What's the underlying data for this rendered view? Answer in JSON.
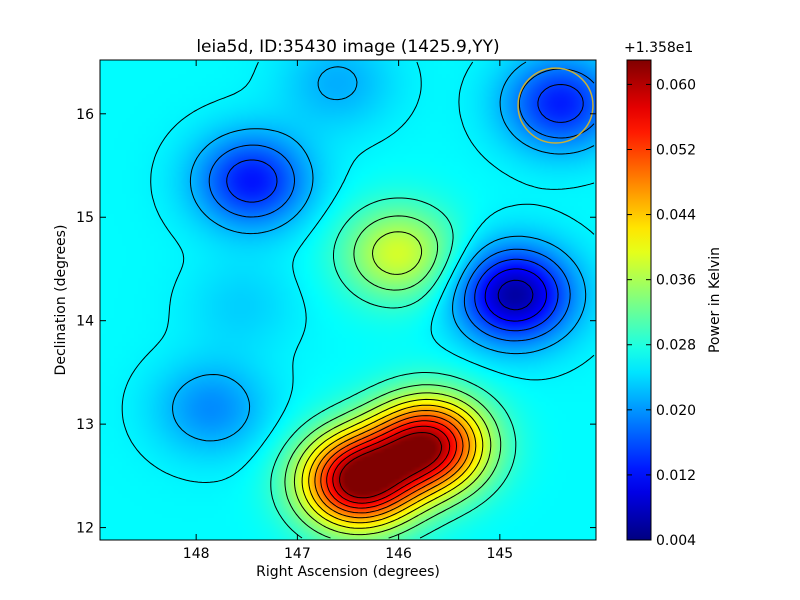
{
  "chart_data": {
    "type": "heatmap",
    "title": "leia5d, ID:35430 image (1425.9,YY)",
    "xlabel": "Right Ascension (degrees)",
    "ylabel": "Declination (degrees)",
    "xlim": [
      148.95,
      144.05
    ],
    "ylim": [
      11.88,
      16.52
    ],
    "x_ticks": [
      148,
      147,
      146,
      145
    ],
    "x_tick_labels": [
      "148",
      "147",
      "146",
      "145"
    ],
    "y_ticks": [
      12,
      13,
      14,
      15,
      16
    ],
    "y_tick_labels": [
      "12",
      "13",
      "14",
      "15",
      "16"
    ],
    "colorbar": {
      "label": "Power in Kelvin",
      "offset_text": "+1.358e1",
      "range": [
        0.004,
        0.063
      ],
      "ticks": [
        0.004,
        0.012,
        0.02,
        0.028,
        0.036,
        0.044,
        0.052,
        0.06
      ],
      "tick_labels": [
        "0.004",
        "0.012",
        "0.020",
        "0.028",
        "0.036",
        "0.044",
        "0.052",
        "0.060"
      ],
      "colormap": "jet"
    },
    "background_value": 0.026,
    "features": [
      {
        "kind": "minimum",
        "ra": 147.45,
        "dec": 15.35,
        "value": 0.0125
      },
      {
        "kind": "maximum",
        "ra": 146.0,
        "dec": 14.65,
        "value": 0.0385
      },
      {
        "kind": "minimum",
        "ra": 144.85,
        "dec": 14.25,
        "value": 0.006
      },
      {
        "kind": "minimum",
        "ra": 147.85,
        "dec": 13.15,
        "value": 0.0195
      },
      {
        "kind": "minimum",
        "ra": 144.4,
        "dec": 16.1,
        "value": 0.013
      },
      {
        "kind": "minimum",
        "ra": 146.6,
        "dec": 16.3,
        "value": 0.0215
      },
      {
        "kind": "maximum",
        "ra": 146.4,
        "dec": 12.45,
        "value": 0.063
      },
      {
        "kind": "maximum",
        "ra": 145.7,
        "dec": 12.8,
        "value": 0.06
      },
      {
        "kind": "minimum",
        "ra": 147.55,
        "dec": 14.15,
        "value": 0.0235
      }
    ],
    "beam_circle": {
      "ra": 144.45,
      "dec": 16.08,
      "radius_deg": 0.37,
      "color": "#c8b038"
    },
    "contours": true,
    "grid": false
  }
}
